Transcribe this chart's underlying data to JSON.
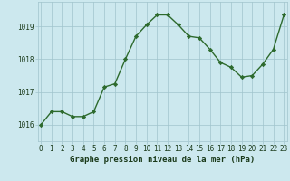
{
  "x": [
    0,
    1,
    2,
    3,
    4,
    5,
    6,
    7,
    8,
    9,
    10,
    11,
    12,
    13,
    14,
    15,
    16,
    17,
    18,
    19,
    20,
    21,
    22,
    23
  ],
  "y": [
    1016.0,
    1016.4,
    1016.4,
    1016.25,
    1016.25,
    1016.4,
    1017.15,
    1017.25,
    1018.0,
    1018.7,
    1019.05,
    1019.35,
    1019.35,
    1019.05,
    1018.7,
    1018.65,
    1018.3,
    1017.9,
    1017.75,
    1017.45,
    1017.5,
    1017.85,
    1018.3,
    1019.35
  ],
  "line_color": "#2d6a2d",
  "marker": "D",
  "markersize": 2.2,
  "linewidth": 1.0,
  "bg_color": "#cce8ee",
  "grid_color": "#a0c4cc",
  "title": "Graphe pression niveau de la mer (hPa)",
  "title_fontsize": 6.5,
  "tick_fontsize": 5.5,
  "ylim": [
    1015.5,
    1019.75
  ],
  "yticks": [
    1016,
    1017,
    1018,
    1019
  ],
  "xticks": [
    0,
    1,
    2,
    3,
    4,
    5,
    6,
    7,
    8,
    9,
    10,
    11,
    12,
    13,
    14,
    15,
    16,
    17,
    18,
    19,
    20,
    21,
    22,
    23
  ],
  "xlim": [
    -0.3,
    23.3
  ]
}
